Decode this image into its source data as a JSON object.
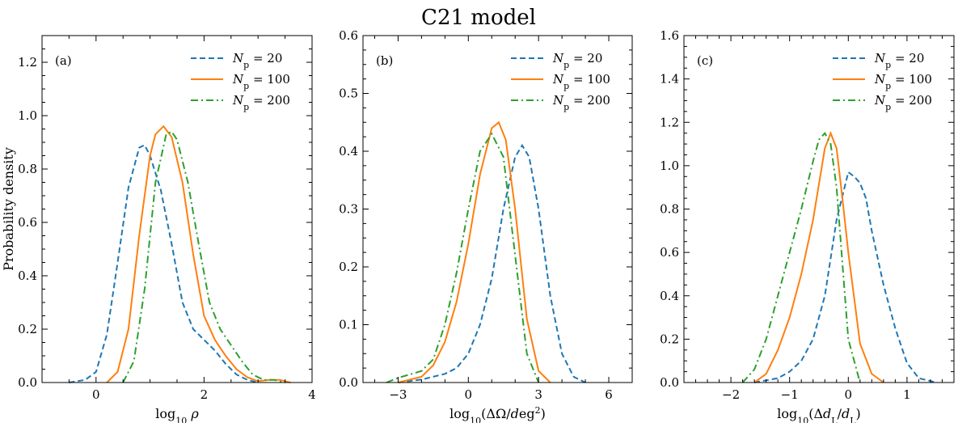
{
  "figure_title": "C21 model",
  "legend_labels": [
    "N_p = 20",
    "N_p = 100",
    "N_p = 200"
  ],
  "chart_data": [
    {
      "type": "line",
      "panel_label": "(a)",
      "xlabel": "log10 ρ",
      "ylabel": "Probability density",
      "xlim": [
        -1,
        4
      ],
      "ylim": [
        0,
        1.3
      ],
      "xticks": [
        0,
        2,
        4
      ],
      "yticks": [
        0.0,
        0.2,
        0.4,
        0.6,
        0.8,
        1.0,
        1.2
      ],
      "legend_position": "top-right",
      "series": [
        {
          "name": "N_p = 20",
          "color": "#1f77b4",
          "dash": "dashed",
          "x": [
            -0.5,
            -0.2,
            0.0,
            0.2,
            0.4,
            0.6,
            0.8,
            0.9,
            1.0,
            1.2,
            1.4,
            1.6,
            1.8,
            2.0,
            2.2,
            2.4,
            2.6,
            2.8,
            3.0
          ],
          "y": [
            0.0,
            0.01,
            0.04,
            0.18,
            0.45,
            0.73,
            0.88,
            0.89,
            0.85,
            0.72,
            0.52,
            0.3,
            0.2,
            0.16,
            0.12,
            0.07,
            0.03,
            0.01,
            0.0
          ]
        },
        {
          "name": "N_p = 100",
          "color": "#ff7f0e",
          "dash": "solid",
          "x": [
            0.2,
            0.4,
            0.6,
            0.8,
            1.0,
            1.1,
            1.25,
            1.4,
            1.6,
            1.8,
            2.0,
            2.2,
            2.4,
            2.6,
            2.8,
            3.0,
            3.2,
            3.4,
            3.6
          ],
          "y": [
            0.0,
            0.04,
            0.2,
            0.55,
            0.85,
            0.93,
            0.96,
            0.92,
            0.75,
            0.48,
            0.25,
            0.16,
            0.1,
            0.05,
            0.02,
            0.005,
            0.01,
            0.01,
            0.0
          ]
        },
        {
          "name": "N_p = 200",
          "color": "#2ca02c",
          "dash": "dashdot",
          "x": [
            0.5,
            0.7,
            0.9,
            1.1,
            1.3,
            1.4,
            1.5,
            1.7,
            1.9,
            2.1,
            2.3,
            2.5,
            2.7,
            2.9,
            3.1,
            3.3,
            3.5
          ],
          "y": [
            0.0,
            0.08,
            0.35,
            0.75,
            0.93,
            0.94,
            0.91,
            0.75,
            0.52,
            0.3,
            0.2,
            0.14,
            0.08,
            0.03,
            0.01,
            0.01,
            0.0
          ]
        }
      ]
    },
    {
      "type": "line",
      "panel_label": "(b)",
      "xlabel": "log10(ΔΩ/deg²)",
      "ylabel": "",
      "xlim": [
        -4.5,
        7.0
      ],
      "ylim": [
        0,
        0.6
      ],
      "xticks": [
        -3,
        0,
        3,
        6
      ],
      "yticks": [
        0.0,
        0.1,
        0.2,
        0.3,
        0.4,
        0.5,
        0.6
      ],
      "legend_position": "top-right",
      "series": [
        {
          "name": "N_p = 20",
          "color": "#1f77b4",
          "dash": "dashed",
          "x": [
            -3.0,
            -2.0,
            -1.0,
            -0.5,
            0.0,
            0.5,
            1.0,
            1.5,
            2.0,
            2.3,
            2.6,
            3.0,
            3.5,
            4.0,
            4.5,
            5.0
          ],
          "y": [
            0.0,
            0.005,
            0.015,
            0.025,
            0.05,
            0.1,
            0.18,
            0.3,
            0.39,
            0.41,
            0.39,
            0.3,
            0.15,
            0.05,
            0.01,
            0.0
          ]
        },
        {
          "name": "N_p = 100",
          "color": "#ff7f0e",
          "dash": "solid",
          "x": [
            -3.0,
            -2.0,
            -1.5,
            -1.0,
            -0.5,
            0.0,
            0.5,
            1.0,
            1.3,
            1.6,
            2.0,
            2.5,
            3.0,
            3.5
          ],
          "y": [
            0.0,
            0.01,
            0.03,
            0.07,
            0.14,
            0.24,
            0.36,
            0.44,
            0.45,
            0.42,
            0.3,
            0.11,
            0.02,
            0.0
          ]
        },
        {
          "name": "N_p = 200",
          "color": "#2ca02c",
          "dash": "dashdot",
          "x": [
            -3.5,
            -3.0,
            -2.0,
            -1.5,
            -1.0,
            -0.5,
            0.0,
            0.5,
            1.0,
            1.5,
            2.0,
            2.5,
            3.0
          ],
          "y": [
            0.0,
            0.008,
            0.02,
            0.04,
            0.1,
            0.19,
            0.3,
            0.4,
            0.43,
            0.39,
            0.22,
            0.05,
            0.0
          ]
        }
      ]
    },
    {
      "type": "line",
      "panel_label": "(c)",
      "xlabel": "log10(Δd_L/d_L)",
      "ylabel": "",
      "xlim": [
        -2.8,
        1.8
      ],
      "ylim": [
        0,
        1.6
      ],
      "xticks": [
        -2,
        -1,
        0,
        1
      ],
      "yticks": [
        0.0,
        0.2,
        0.4,
        0.6,
        0.8,
        1.0,
        1.2,
        1.4,
        1.6
      ],
      "legend_position": "top-right",
      "series": [
        {
          "name": "N_p = 20",
          "color": "#1f77b4",
          "dash": "dashed",
          "x": [
            -1.6,
            -1.2,
            -1.0,
            -0.8,
            -0.6,
            -0.4,
            -0.2,
            0.0,
            0.1,
            0.2,
            0.3,
            0.4,
            0.6,
            0.8,
            1.0,
            1.2,
            1.5
          ],
          "y": [
            0.0,
            0.02,
            0.05,
            0.1,
            0.2,
            0.4,
            0.75,
            0.97,
            0.95,
            0.92,
            0.85,
            0.7,
            0.45,
            0.25,
            0.09,
            0.02,
            0.0
          ]
        },
        {
          "name": "N_p = 100",
          "color": "#ff7f0e",
          "dash": "solid",
          "x": [
            -1.6,
            -1.4,
            -1.2,
            -1.0,
            -0.8,
            -0.6,
            -0.4,
            -0.3,
            -0.2,
            -0.1,
            0.0,
            0.2,
            0.4,
            0.6
          ],
          "y": [
            0.0,
            0.04,
            0.15,
            0.3,
            0.5,
            0.75,
            1.08,
            1.15,
            1.08,
            0.85,
            0.6,
            0.18,
            0.04,
            0.0
          ]
        },
        {
          "name": "N_p = 200",
          "color": "#2ca02c",
          "dash": "dashdot",
          "x": [
            -1.8,
            -1.6,
            -1.4,
            -1.2,
            -1.0,
            -0.8,
            -0.6,
            -0.5,
            -0.4,
            -0.3,
            -0.2,
            -0.1,
            0.0,
            0.2
          ],
          "y": [
            0.0,
            0.06,
            0.2,
            0.4,
            0.6,
            0.8,
            1.02,
            1.12,
            1.15,
            1.1,
            0.9,
            0.55,
            0.2,
            0.0
          ]
        }
      ]
    }
  ]
}
